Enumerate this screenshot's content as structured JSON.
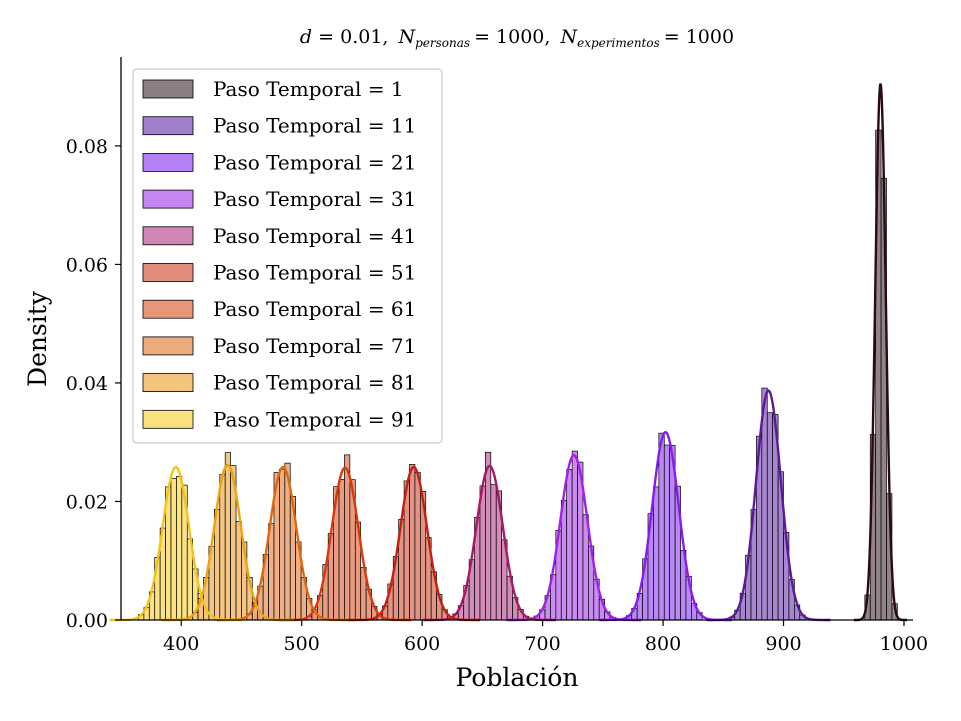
{
  "chart_data": {
    "type": "histogram-kde",
    "title": "d = 0.01, N_personas = 1000, N_experimentos = 1000",
    "title_parts": {
      "d_label": "d",
      "d_value": "= 0.01,",
      "n1_label": "N",
      "n1_sub": "personas",
      "n1_value": "= 1000,",
      "n2_label": "N",
      "n2_sub": "experimentos",
      "n2_value": "= 1000"
    },
    "xlabel": "Población",
    "ylabel": "Density",
    "xlim": [
      350,
      1005
    ],
    "ylim": [
      0,
      0.095
    ],
    "xticks": [
      400,
      500,
      600,
      700,
      800,
      900,
      1000
    ],
    "xtick_labels": [
      "400",
      "500",
      "600",
      "700",
      "800",
      "900",
      "1000"
    ],
    "yticks": [
      0.0,
      0.02,
      0.04,
      0.06,
      0.08
    ],
    "ytick_labels": [
      "0.00",
      "0.02",
      "0.04",
      "0.06",
      "0.08"
    ],
    "legend_position": "top-left",
    "bin_width": 4.5,
    "series": [
      {
        "name": "Paso Temporal = 1",
        "mean": 980.5,
        "sd": 4.4,
        "peak_density": 0.0905,
        "fill": "#8a7d84",
        "line": "#2b0a12"
      },
      {
        "name": "Paso Temporal = 11",
        "mean": 887.5,
        "sd": 10.3,
        "peak_density": 0.0387,
        "fill": "#a07fcc",
        "line": "#5c1a99"
      },
      {
        "name": "Paso Temporal = 21",
        "mean": 802.0,
        "sd": 11.0,
        "peak_density": 0.0317,
        "fill": "#b482f6",
        "line": "#8a1bf0"
      },
      {
        "name": "Paso Temporal = 31",
        "mean": 726.0,
        "sd": 11.2,
        "peak_density": 0.0278,
        "fill": "#c785f0",
        "line": "#9f22e6"
      },
      {
        "name": "Paso Temporal = 41",
        "mean": 656.0,
        "sd": 11.0,
        "peak_density": 0.026,
        "fill": "#cf86b3",
        "line": "#a51a63"
      },
      {
        "name": "Paso Temporal = 51",
        "mean": 593.0,
        "sd": 11.0,
        "peak_density": 0.0258,
        "fill": "#e08d7c",
        "line": "#c41f10"
      },
      {
        "name": "Paso Temporal = 61",
        "mean": 536.0,
        "sd": 11.0,
        "peak_density": 0.0257,
        "fill": "#e8967a",
        "line": "#d53a0a"
      },
      {
        "name": "Paso Temporal = 71",
        "mean": 484.5,
        "sd": 11.0,
        "peak_density": 0.0258,
        "fill": "#ecab7c",
        "line": "#e0680c"
      },
      {
        "name": "Paso Temporal = 81",
        "mean": 438.5,
        "sd": 11.0,
        "peak_density": 0.0262,
        "fill": "#f2c47c",
        "line": "#eba312"
      },
      {
        "name": "Paso Temporal = 91",
        "mean": 395.5,
        "sd": 11.0,
        "peak_density": 0.0258,
        "fill": "#fbe17d",
        "line": "#f2c318"
      }
    ]
  }
}
